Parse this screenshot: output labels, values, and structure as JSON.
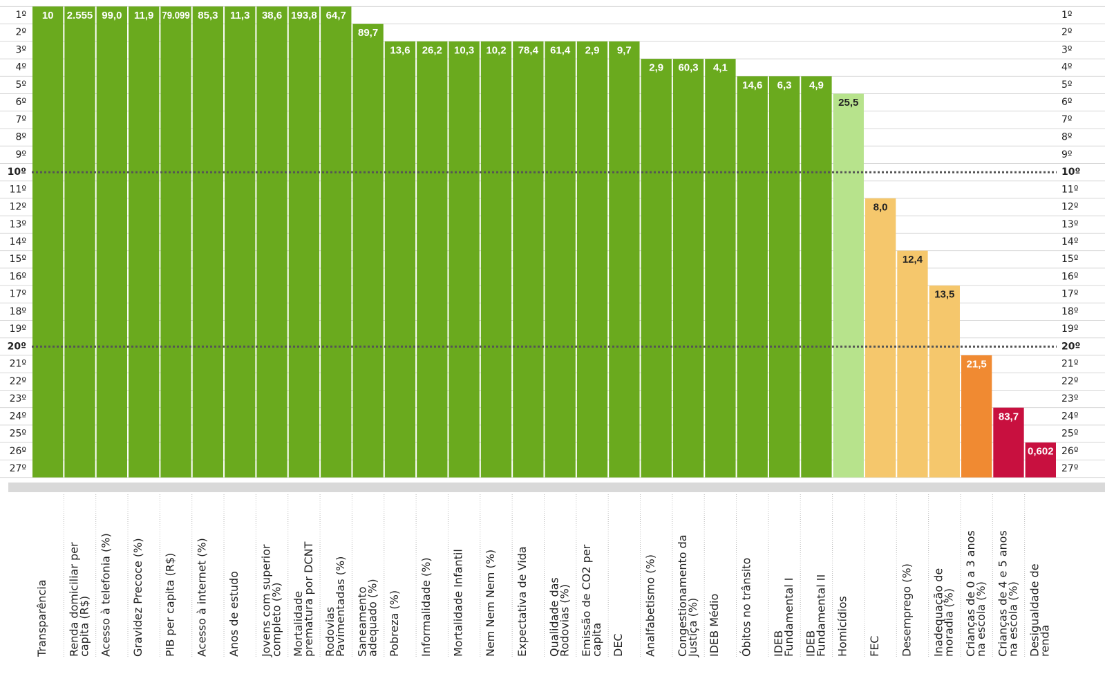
{
  "chart_data": {
    "type": "ranking",
    "ylim": [
      0.5,
      27.5
    ],
    "yticks": [
      {
        "value": 1,
        "label": "1º"
      },
      {
        "value": 2,
        "label": "2º"
      },
      {
        "value": 3,
        "label": "3º"
      },
      {
        "value": 4,
        "label": "4º"
      },
      {
        "value": 5,
        "label": "5º"
      },
      {
        "value": 6,
        "label": "6º"
      },
      {
        "value": 7,
        "label": "7º"
      },
      {
        "value": 8,
        "label": "8º"
      },
      {
        "value": 9,
        "label": "9º"
      },
      {
        "value": 10,
        "label": "10º"
      },
      {
        "value": 11,
        "label": "11º"
      },
      {
        "value": 12,
        "label": "12º"
      },
      {
        "value": 13,
        "label": "13º"
      },
      {
        "value": 14,
        "label": "14º"
      },
      {
        "value": 15,
        "label": "15º"
      },
      {
        "value": 16,
        "label": "16º"
      },
      {
        "value": 17,
        "label": "17º"
      },
      {
        "value": 18,
        "label": "18º"
      },
      {
        "value": 19,
        "label": "19º"
      },
      {
        "value": 20,
        "label": "20º"
      },
      {
        "value": 21,
        "label": "21º"
      },
      {
        "value": 22,
        "label": "22º"
      },
      {
        "value": 23,
        "label": "23º"
      },
      {
        "value": 24,
        "label": "24º"
      },
      {
        "value": 25,
        "label": "25º"
      },
      {
        "value": 26,
        "label": "26º"
      },
      {
        "value": 27,
        "label": "27º"
      }
    ],
    "highlight_ranks": [
      10,
      20
    ],
    "indicators": [
      {
        "label": [
          "Transparência"
        ],
        "rank": 1,
        "value_label": "10",
        "color": "#6aaa1e"
      },
      {
        "label": [
          "Renda domiciliar per",
          "capita (R$)"
        ],
        "rank": 1,
        "value_label": "2.555",
        "color": "#6aaa1e"
      },
      {
        "label": [
          "Acesso à telefonia (%)"
        ],
        "rank": 1,
        "value_label": "99,0",
        "color": "#6aaa1e"
      },
      {
        "label": [
          "Gravidez Precoce (%)"
        ],
        "rank": 1,
        "value_label": "11,9",
        "color": "#6aaa1e"
      },
      {
        "label": [
          "PIB per capita (R$)"
        ],
        "rank": 1,
        "value_label": "79.099",
        "color": "#6aaa1e"
      },
      {
        "label": [
          "Acesso à internet (%)"
        ],
        "rank": 1,
        "value_label": "85,3",
        "color": "#6aaa1e"
      },
      {
        "label": [
          "Anos de estudo"
        ],
        "rank": 1,
        "value_label": "11,3",
        "color": "#6aaa1e"
      },
      {
        "label": [
          "Jovens com superior",
          "completo (%)"
        ],
        "rank": 1,
        "value_label": "38,6",
        "color": "#6aaa1e"
      },
      {
        "label": [
          "Mortalidade",
          "prematura por DCNT"
        ],
        "rank": 1,
        "value_label": "193,8",
        "color": "#6aaa1e"
      },
      {
        "label": [
          "Rodovias",
          "Pavimentadas (%)"
        ],
        "rank": 1,
        "value_label": "64,7",
        "color": "#6aaa1e"
      },
      {
        "label": [
          "Saneamento",
          "adequado (%)"
        ],
        "rank": 2,
        "value_label": "89,7",
        "color": "#6aaa1e"
      },
      {
        "label": [
          "Pobreza (%)"
        ],
        "rank": 3,
        "value_label": "13,6",
        "color": "#6aaa1e"
      },
      {
        "label": [
          "Informalidade (%)"
        ],
        "rank": 3,
        "value_label": "26,2",
        "color": "#6aaa1e"
      },
      {
        "label": [
          "Mortalidade Infantil"
        ],
        "rank": 3,
        "value_label": "10,3",
        "color": "#6aaa1e"
      },
      {
        "label": [
          "Nem Nem Nem (%)"
        ],
        "rank": 3,
        "value_label": "10,2",
        "color": "#6aaa1e"
      },
      {
        "label": [
          "Expectativa de Vida"
        ],
        "rank": 3,
        "value_label": "78,4",
        "color": "#6aaa1e"
      },
      {
        "label": [
          "Qualidade das",
          "Rodovias (%)"
        ],
        "rank": 3,
        "value_label": "61,4",
        "color": "#6aaa1e"
      },
      {
        "label": [
          "Emissão de CO2  per",
          "capita"
        ],
        "rank": 3,
        "value_label": "2,9",
        "color": "#6aaa1e"
      },
      {
        "label": [
          "DEC"
        ],
        "rank": 3,
        "value_label": "9,7",
        "color": "#6aaa1e"
      },
      {
        "label": [
          "Analfabetismo (%)"
        ],
        "rank": 4,
        "value_label": "2,9",
        "color": "#6aaa1e"
      },
      {
        "label": [
          "Congestionamento da",
          "Justiça (%)"
        ],
        "rank": 4,
        "value_label": "60,3",
        "color": "#6aaa1e"
      },
      {
        "label": [
          "IDEB Médio"
        ],
        "rank": 4,
        "value_label": "4,1",
        "color": "#6aaa1e"
      },
      {
        "label": [
          "Óbitos no trânsito"
        ],
        "rank": 5,
        "value_label": "14,6",
        "color": "#6aaa1e"
      },
      {
        "label": [
          "IDEB",
          "Fundamental I"
        ],
        "rank": 5,
        "value_label": "6,3",
        "color": "#6aaa1e"
      },
      {
        "label": [
          "IDEB",
          "Fundamental II"
        ],
        "rank": 5,
        "value_label": "4,9",
        "color": "#6aaa1e"
      },
      {
        "label": [
          "Homicídios"
        ],
        "rank": 6,
        "value_label": "25,5",
        "color": "#b7e38c"
      },
      {
        "label": [
          "FEC"
        ],
        "rank": 12,
        "value_label": "8,0",
        "color": "#f5c76c"
      },
      {
        "label": [
          "Desemprego (%)"
        ],
        "rank": 15,
        "value_label": "12,4",
        "color": "#f5c76c"
      },
      {
        "label": [
          "Inadequação de",
          "moradia (%)"
        ],
        "rank": 17,
        "value_label": "13,5",
        "color": "#f5c76c"
      },
      {
        "label": [
          "Crianças de 0 a 3 anos",
          "na escola (%)"
        ],
        "rank": 21,
        "value_label": "21,5",
        "color": "#f08a32"
      },
      {
        "label": [
          "Crianças de 4 e 5 anos",
          "na escola (%)"
        ],
        "rank": 24,
        "value_label": "83,7",
        "color": "#c8103f"
      },
      {
        "label": [
          "Desigualdade de",
          "renda"
        ],
        "rank": 26,
        "value_label": "0,602",
        "color": "#c8103f"
      }
    ]
  }
}
